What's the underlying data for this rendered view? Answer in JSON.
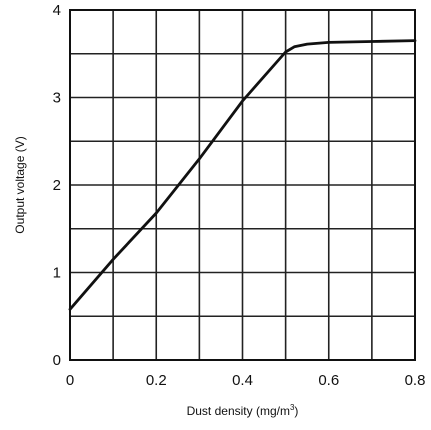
{
  "chart_data": {
    "type": "line",
    "xlabel_main": "Dust density (mg/m",
    "xlabel_sup": "3",
    "xlabel_tail": ")",
    "ylabel": "Output voltage (V)",
    "xlim": [
      0,
      0.8
    ],
    "ylim": [
      0,
      4
    ],
    "x_ticks": [
      0,
      0.1,
      0.2,
      0.3,
      0.4,
      0.5,
      0.6,
      0.7,
      0.8
    ],
    "x_tick_labels": [
      "0",
      "",
      "0.2",
      "",
      "0.4",
      "",
      "0.6",
      "",
      "0.8"
    ],
    "y_ticks": [
      0,
      0.5,
      1,
      1.5,
      2,
      2.5,
      3,
      3.5,
      4
    ],
    "y_tick_labels": [
      "0",
      "",
      "1",
      "",
      "2",
      "",
      "3",
      "",
      "4"
    ],
    "grid": true,
    "series": [
      {
        "x": [
          0,
          0.1,
          0.2,
          0.3,
          0.4,
          0.5,
          0.52,
          0.55,
          0.6,
          0.7,
          0.8
        ],
        "y": [
          0.58,
          1.15,
          1.68,
          2.3,
          2.96,
          3.52,
          3.58,
          3.61,
          3.63,
          3.64,
          3.65
        ],
        "color": "#111111"
      }
    ]
  }
}
